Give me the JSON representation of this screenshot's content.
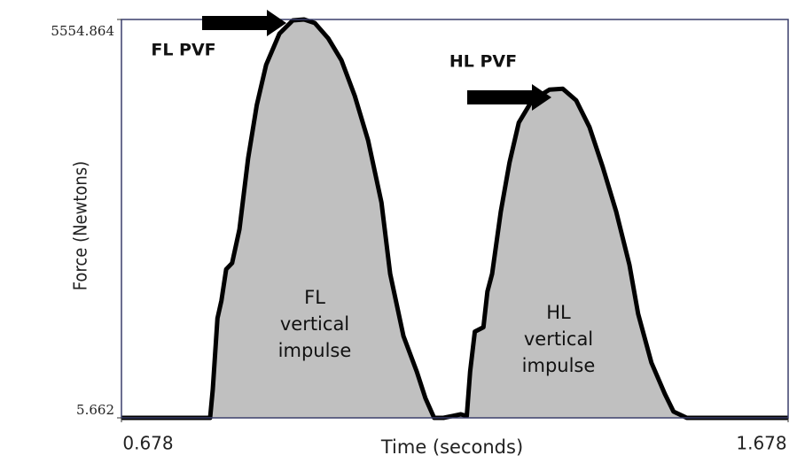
{
  "chart_data": {
    "type": "area",
    "xlabel": "Time (seconds)",
    "ylabel": "Force (Newtons)",
    "x": [
      0.678,
      0.811,
      0.815,
      0.822,
      0.828,
      0.835,
      0.844,
      0.855,
      0.868,
      0.881,
      0.895,
      0.915,
      0.935,
      0.952,
      0.968,
      0.988,
      1.008,
      1.028,
      1.048,
      1.068,
      1.081,
      1.101,
      1.121,
      1.134,
      1.147,
      1.161,
      1.187,
      1.196,
      1.201,
      1.208,
      1.221,
      1.227,
      1.234,
      1.247,
      1.26,
      1.274,
      1.294,
      1.32,
      1.34,
      1.36,
      1.38,
      1.4,
      1.42,
      1.44,
      1.453,
      1.473,
      1.493,
      1.506,
      1.526,
      1.678
    ],
    "series": [
      {
        "color": "#000000",
        "fill": "#c0c0c0",
        "values": [
          5.662,
          5.662,
          402,
          1393,
          1641,
          2075,
          2161,
          2632,
          3623,
          4366,
          4923,
          5357,
          5543,
          5554.864,
          5506,
          5295,
          4985,
          4490,
          3871,
          3003,
          2012,
          1145,
          650,
          278,
          5.662,
          5.662,
          55,
          30,
          650,
          1207,
          1269,
          1765,
          2012,
          2880,
          3561,
          4118,
          4428,
          4577,
          4589,
          4428,
          4056,
          3499,
          2880,
          2136,
          1455,
          774,
          340,
          93,
          5.662,
          5.662
        ]
      }
    ],
    "xlim": [
      0.678,
      1.678
    ],
    "ylim": [
      5.662,
      5554.864
    ],
    "xticks": [
      0.678,
      1.678
    ],
    "yticks": [
      5.662,
      5554.864
    ],
    "annotations": [
      {
        "lines": [
          "FL PVF"
        ]
      },
      {
        "lines": [
          "HL PVF"
        ]
      },
      {
        "lines": [
          "FL",
          "vertical",
          "impulse"
        ]
      },
      {
        "lines": [
          "HL",
          "vertical",
          "impulse"
        ]
      }
    ]
  }
}
